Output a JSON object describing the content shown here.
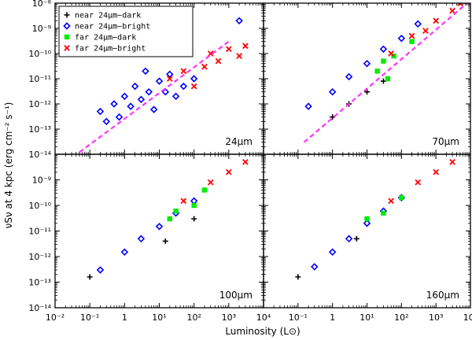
{
  "chart_data": {
    "type": "scatter",
    "layout": "2x2 panels, shared axes",
    "xlabel": "Luminosity (L⊙)",
    "ylabel": "νSν at 4 kpc (erg cm⁻² s⁻¹)",
    "xscale": "log",
    "yscale": "log",
    "xlim": [
      0.01,
      10000
    ],
    "ylim_top": [
      1e-14,
      1e-08
    ],
    "ylim_bottom": [
      1e-14,
      1e-08
    ],
    "x_tick_labels": [
      "10⁻²",
      "10⁻¹",
      "1",
      "10¹",
      "10²",
      "10³",
      "10⁴"
    ],
    "y_tick_labels": [
      "10⁻¹⁴",
      "10⁻¹³",
      "10⁻¹²",
      "10⁻¹¹",
      "10⁻¹⁰",
      "10⁻⁹",
      "10⁻⁸"
    ],
    "legend": {
      "placement": "top-left of first panel",
      "entries": [
        {
          "label": "near 24μm−dark",
          "marker": "plus",
          "color": "#000000"
        },
        {
          "label": "near 24μm−bright",
          "marker": "open-diamond",
          "color": "#0000ff"
        },
        {
          "label": "far 24μm−dark",
          "marker": "filled-square",
          "color": "#00ee00"
        },
        {
          "label": "far 24μm−bright",
          "marker": "cross",
          "color": "#ff0000"
        }
      ]
    },
    "panels": [
      {
        "label": "24μm",
        "fit_line": {
          "color": "#ff33ff",
          "style": "dashed",
          "x": [
            0.05,
            1000
          ],
          "y": [
            1.2e-14,
            3e-10
          ]
        }
      },
      {
        "label": "70μm",
        "fit_line": {
          "color": "#ff33ff",
          "style": "dashed",
          "x": [
            0.15,
            8000
          ],
          "y": [
            3e-14,
            1e-08
          ]
        }
      },
      {
        "label": "100μm",
        "fit_line": null
      },
      {
        "label": "160μm",
        "fit_line": null
      }
    ],
    "series": [
      {
        "name": "near 24μm−dark",
        "points": [
          {
            "x": 1.0,
            "y": 3e-13,
            "panel": 2
          },
          {
            "x": 3.0,
            "y": 1e-12,
            "panel": 2
          },
          {
            "x": 10.0,
            "y": 3e-12,
            "panel": 2
          },
          {
            "x": 30.0,
            "y": 8e-12,
            "panel": 2
          },
          {
            "x": 0.1,
            "y": 1.6e-13,
            "panel": 3
          },
          {
            "x": 15.0,
            "y": 4e-12,
            "panel": 3
          },
          {
            "x": 100.0,
            "y": 3e-11,
            "panel": 3
          },
          {
            "x": 0.1,
            "y": 1.6e-13,
            "panel": 4
          },
          {
            "x": 5.0,
            "y": 5e-12,
            "panel": 4
          }
        ]
      },
      {
        "name": "near 24μm−bright",
        "points": [
          {
            "x": 0.2,
            "y": 5e-13,
            "panel": 1
          },
          {
            "x": 0.3,
            "y": 2e-13,
            "panel": 1
          },
          {
            "x": 0.5,
            "y": 1e-12,
            "panel": 1
          },
          {
            "x": 0.7,
            "y": 3e-13,
            "panel": 1
          },
          {
            "x": 1.0,
            "y": 2e-12,
            "panel": 1
          },
          {
            "x": 1.5,
            "y": 8e-13,
            "panel": 1
          },
          {
            "x": 2.0,
            "y": 5e-12,
            "panel": 1
          },
          {
            "x": 3.0,
            "y": 1.5e-12,
            "panel": 1
          },
          {
            "x": 4.0,
            "y": 2e-11,
            "panel": 1
          },
          {
            "x": 5.0,
            "y": 3e-12,
            "panel": 1
          },
          {
            "x": 7.0,
            "y": 6e-13,
            "panel": 1
          },
          {
            "x": 10.0,
            "y": 8e-12,
            "panel": 1
          },
          {
            "x": 15.0,
            "y": 3e-12,
            "panel": 1
          },
          {
            "x": 20.0,
            "y": 1.5e-11,
            "panel": 1
          },
          {
            "x": 30.0,
            "y": 2e-12,
            "panel": 1
          },
          {
            "x": 50.0,
            "y": 5e-12,
            "panel": 1
          },
          {
            "x": 100.0,
            "y": 1e-11,
            "panel": 1
          },
          {
            "x": 2000.0,
            "y": 2e-09,
            "panel": 1
          },
          {
            "x": 0.2,
            "y": 8e-13,
            "panel": 2
          },
          {
            "x": 1.0,
            "y": 3e-12,
            "panel": 2
          },
          {
            "x": 3.0,
            "y": 1.2e-11,
            "panel": 2
          },
          {
            "x": 10.0,
            "y": 4e-11,
            "panel": 2
          },
          {
            "x": 30.0,
            "y": 1.5e-10,
            "panel": 2
          },
          {
            "x": 100.0,
            "y": 4e-10,
            "panel": 2
          },
          {
            "x": 300.0,
            "y": 1.5e-09,
            "panel": 2
          },
          {
            "x": 0.2,
            "y": 3e-13,
            "panel": 3
          },
          {
            "x": 1.0,
            "y": 1.5e-12,
            "panel": 3
          },
          {
            "x": 3.0,
            "y": 5e-12,
            "panel": 3
          },
          {
            "x": 10.0,
            "y": 1.5e-11,
            "panel": 3
          },
          {
            "x": 30.0,
            "y": 5e-11,
            "panel": 3
          },
          {
            "x": 100.0,
            "y": 1.5e-10,
            "panel": 3
          },
          {
            "x": 0.3,
            "y": 4e-13,
            "panel": 4
          },
          {
            "x": 1.0,
            "y": 1.5e-12,
            "panel": 4
          },
          {
            "x": 3.0,
            "y": 5e-12,
            "panel": 4
          },
          {
            "x": 10.0,
            "y": 2e-11,
            "panel": 4
          },
          {
            "x": 30.0,
            "y": 6e-11,
            "panel": 4
          },
          {
            "x": 100.0,
            "y": 2e-10,
            "panel": 4
          }
        ]
      },
      {
        "name": "far 24μm−dark",
        "points": [
          {
            "x": 20.0,
            "y": 2e-11,
            "panel": 2
          },
          {
            "x": 30.0,
            "y": 5e-11,
            "panel": 2
          },
          {
            "x": 40.0,
            "y": 1e-11,
            "panel": 2
          },
          {
            "x": 60.0,
            "y": 8e-11,
            "panel": 2
          },
          {
            "x": 200.0,
            "y": 3e-10,
            "panel": 2
          },
          {
            "x": 20.0,
            "y": 3e-11,
            "panel": 3
          },
          {
            "x": 30.0,
            "y": 6e-11,
            "panel": 3
          },
          {
            "x": 100.0,
            "y": 1e-10,
            "panel": 3
          },
          {
            "x": 200.0,
            "y": 4e-10,
            "panel": 3
          },
          {
            "x": 10.0,
            "y": 3e-11,
            "panel": 4
          },
          {
            "x": 30.0,
            "y": 5e-11,
            "panel": 4
          },
          {
            "x": 100.0,
            "y": 2e-10,
            "panel": 4
          }
        ]
      },
      {
        "name": "far 24μm−bright",
        "points": [
          {
            "x": 20.0,
            "y": 1e-11,
            "panel": 1
          },
          {
            "x": 50.0,
            "y": 2e-11,
            "panel": 1
          },
          {
            "x": 100.0,
            "y": 5e-12,
            "panel": 1
          },
          {
            "x": 200.0,
            "y": 3e-11,
            "panel": 1
          },
          {
            "x": 300.0,
            "y": 1e-10,
            "panel": 1
          },
          {
            "x": 500.0,
            "y": 5e-11,
            "panel": 1
          },
          {
            "x": 1000.0,
            "y": 1.5e-10,
            "panel": 1
          },
          {
            "x": 2000.0,
            "y": 8e-11,
            "panel": 1
          },
          {
            "x": 3000.0,
            "y": 2e-10,
            "panel": 1
          },
          {
            "x": 50.0,
            "y": 1e-10,
            "panel": 2
          },
          {
            "x": 200.0,
            "y": 5e-10,
            "panel": 2
          },
          {
            "x": 500.0,
            "y": 8e-10,
            "panel": 2
          },
          {
            "x": 1000.0,
            "y": 2e-09,
            "panel": 2
          },
          {
            "x": 3000.0,
            "y": 5e-09,
            "panel": 2
          },
          {
            "x": 5000.0,
            "y": 1e-08,
            "panel": 2
          },
          {
            "x": 50.0,
            "y": 1.5e-10,
            "panel": 3
          },
          {
            "x": 300.0,
            "y": 8e-10,
            "panel": 3
          },
          {
            "x": 1000.0,
            "y": 2e-09,
            "panel": 3
          },
          {
            "x": 3000.0,
            "y": 5e-09,
            "panel": 3
          },
          {
            "x": 50.0,
            "y": 1.5e-10,
            "panel": 4
          },
          {
            "x": 300.0,
            "y": 8e-10,
            "panel": 4
          },
          {
            "x": 1000.0,
            "y": 2e-09,
            "panel": 4
          },
          {
            "x": 3000.0,
            "y": 5e-09,
            "panel": 4
          }
        ]
      }
    ]
  }
}
